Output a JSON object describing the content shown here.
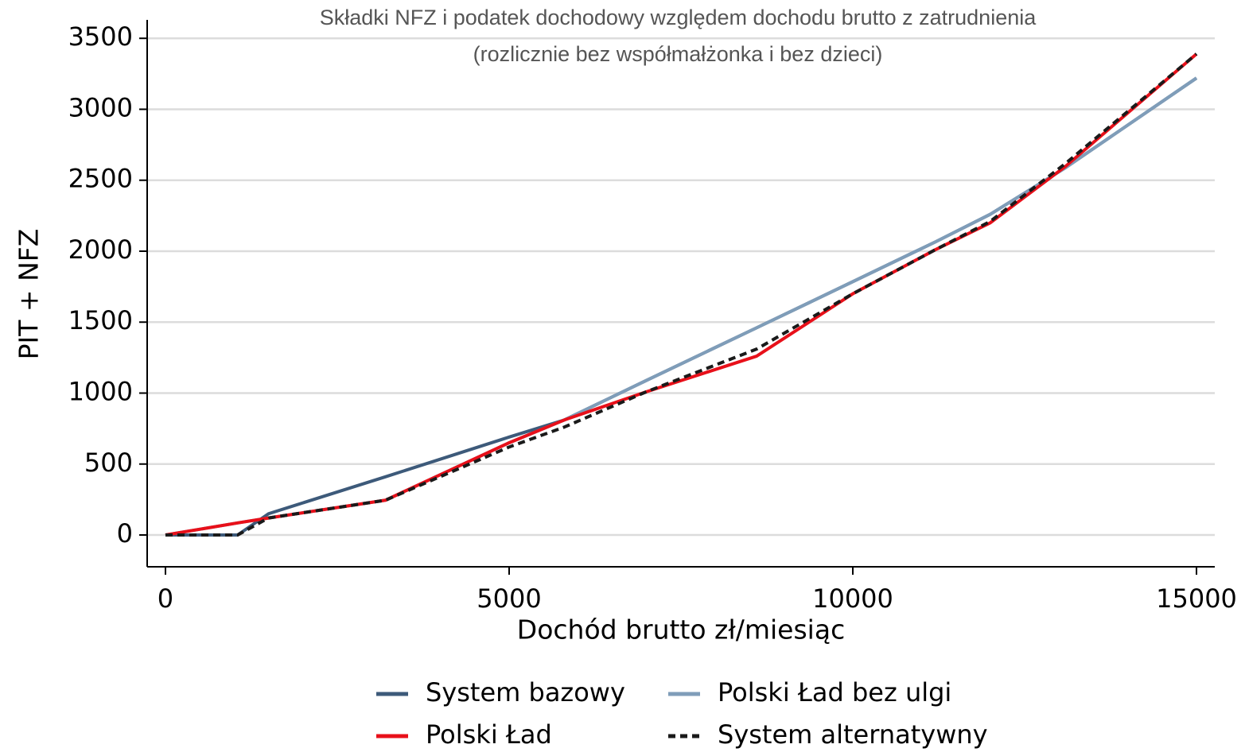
{
  "chart_data": {
    "type": "line",
    "title": "Składki NFZ i podatek dochodowy względem dochodu brutto z zatrudnienia",
    "subtitle": "(rozlicznie bez współmałżonka i bez dzieci)",
    "x_label": "Dochód brutto zł/miesiąc",
    "y_label": "PIT + NFZ",
    "x": [
      0,
      1050,
      1500,
      3200,
      5000,
      5800,
      7000,
      8600,
      10000,
      11200,
      12000,
      13100,
      15000
    ],
    "series": [
      {
        "name": "System bazowy",
        "color": "#3d5a7a",
        "dash": false,
        "values": [
          0,
          0,
          150,
          410,
          690,
          810,
          1090,
          1460,
          1785,
          2065,
          2260,
          2590,
          3220
        ]
      },
      {
        "name": "Polski Ład bez ulgi",
        "color": "#7f9db9",
        "dash": false,
        "values": [
          0,
          85,
          120,
          245,
          650,
          810,
          1090,
          1460,
          1785,
          2065,
          2260,
          2590,
          3220
        ]
      },
      {
        "name": "Polski Ład",
        "color": "#e8101a",
        "dash": false,
        "values": [
          0,
          85,
          120,
          245,
          650,
          810,
          1010,
          1260,
          1700,
          2010,
          2200,
          2600,
          3390
        ]
      },
      {
        "name": "System alternatywny",
        "color": "#1a1a1a",
        "dash": true,
        "values": [
          0,
          0,
          120,
          245,
          620,
          760,
          1010,
          1310,
          1700,
          2010,
          2210,
          2620,
          3390
        ]
      }
    ],
    "xlim": [
      -266,
      15266
    ],
    "ylim": [
      -224,
      3630
    ],
    "xticks": [
      0,
      5000,
      10000,
      15000
    ],
    "yticks": [
      0,
      500,
      1000,
      1500,
      2000,
      2500,
      3000,
      3500
    ],
    "grid": true,
    "legend": "bottom"
  }
}
